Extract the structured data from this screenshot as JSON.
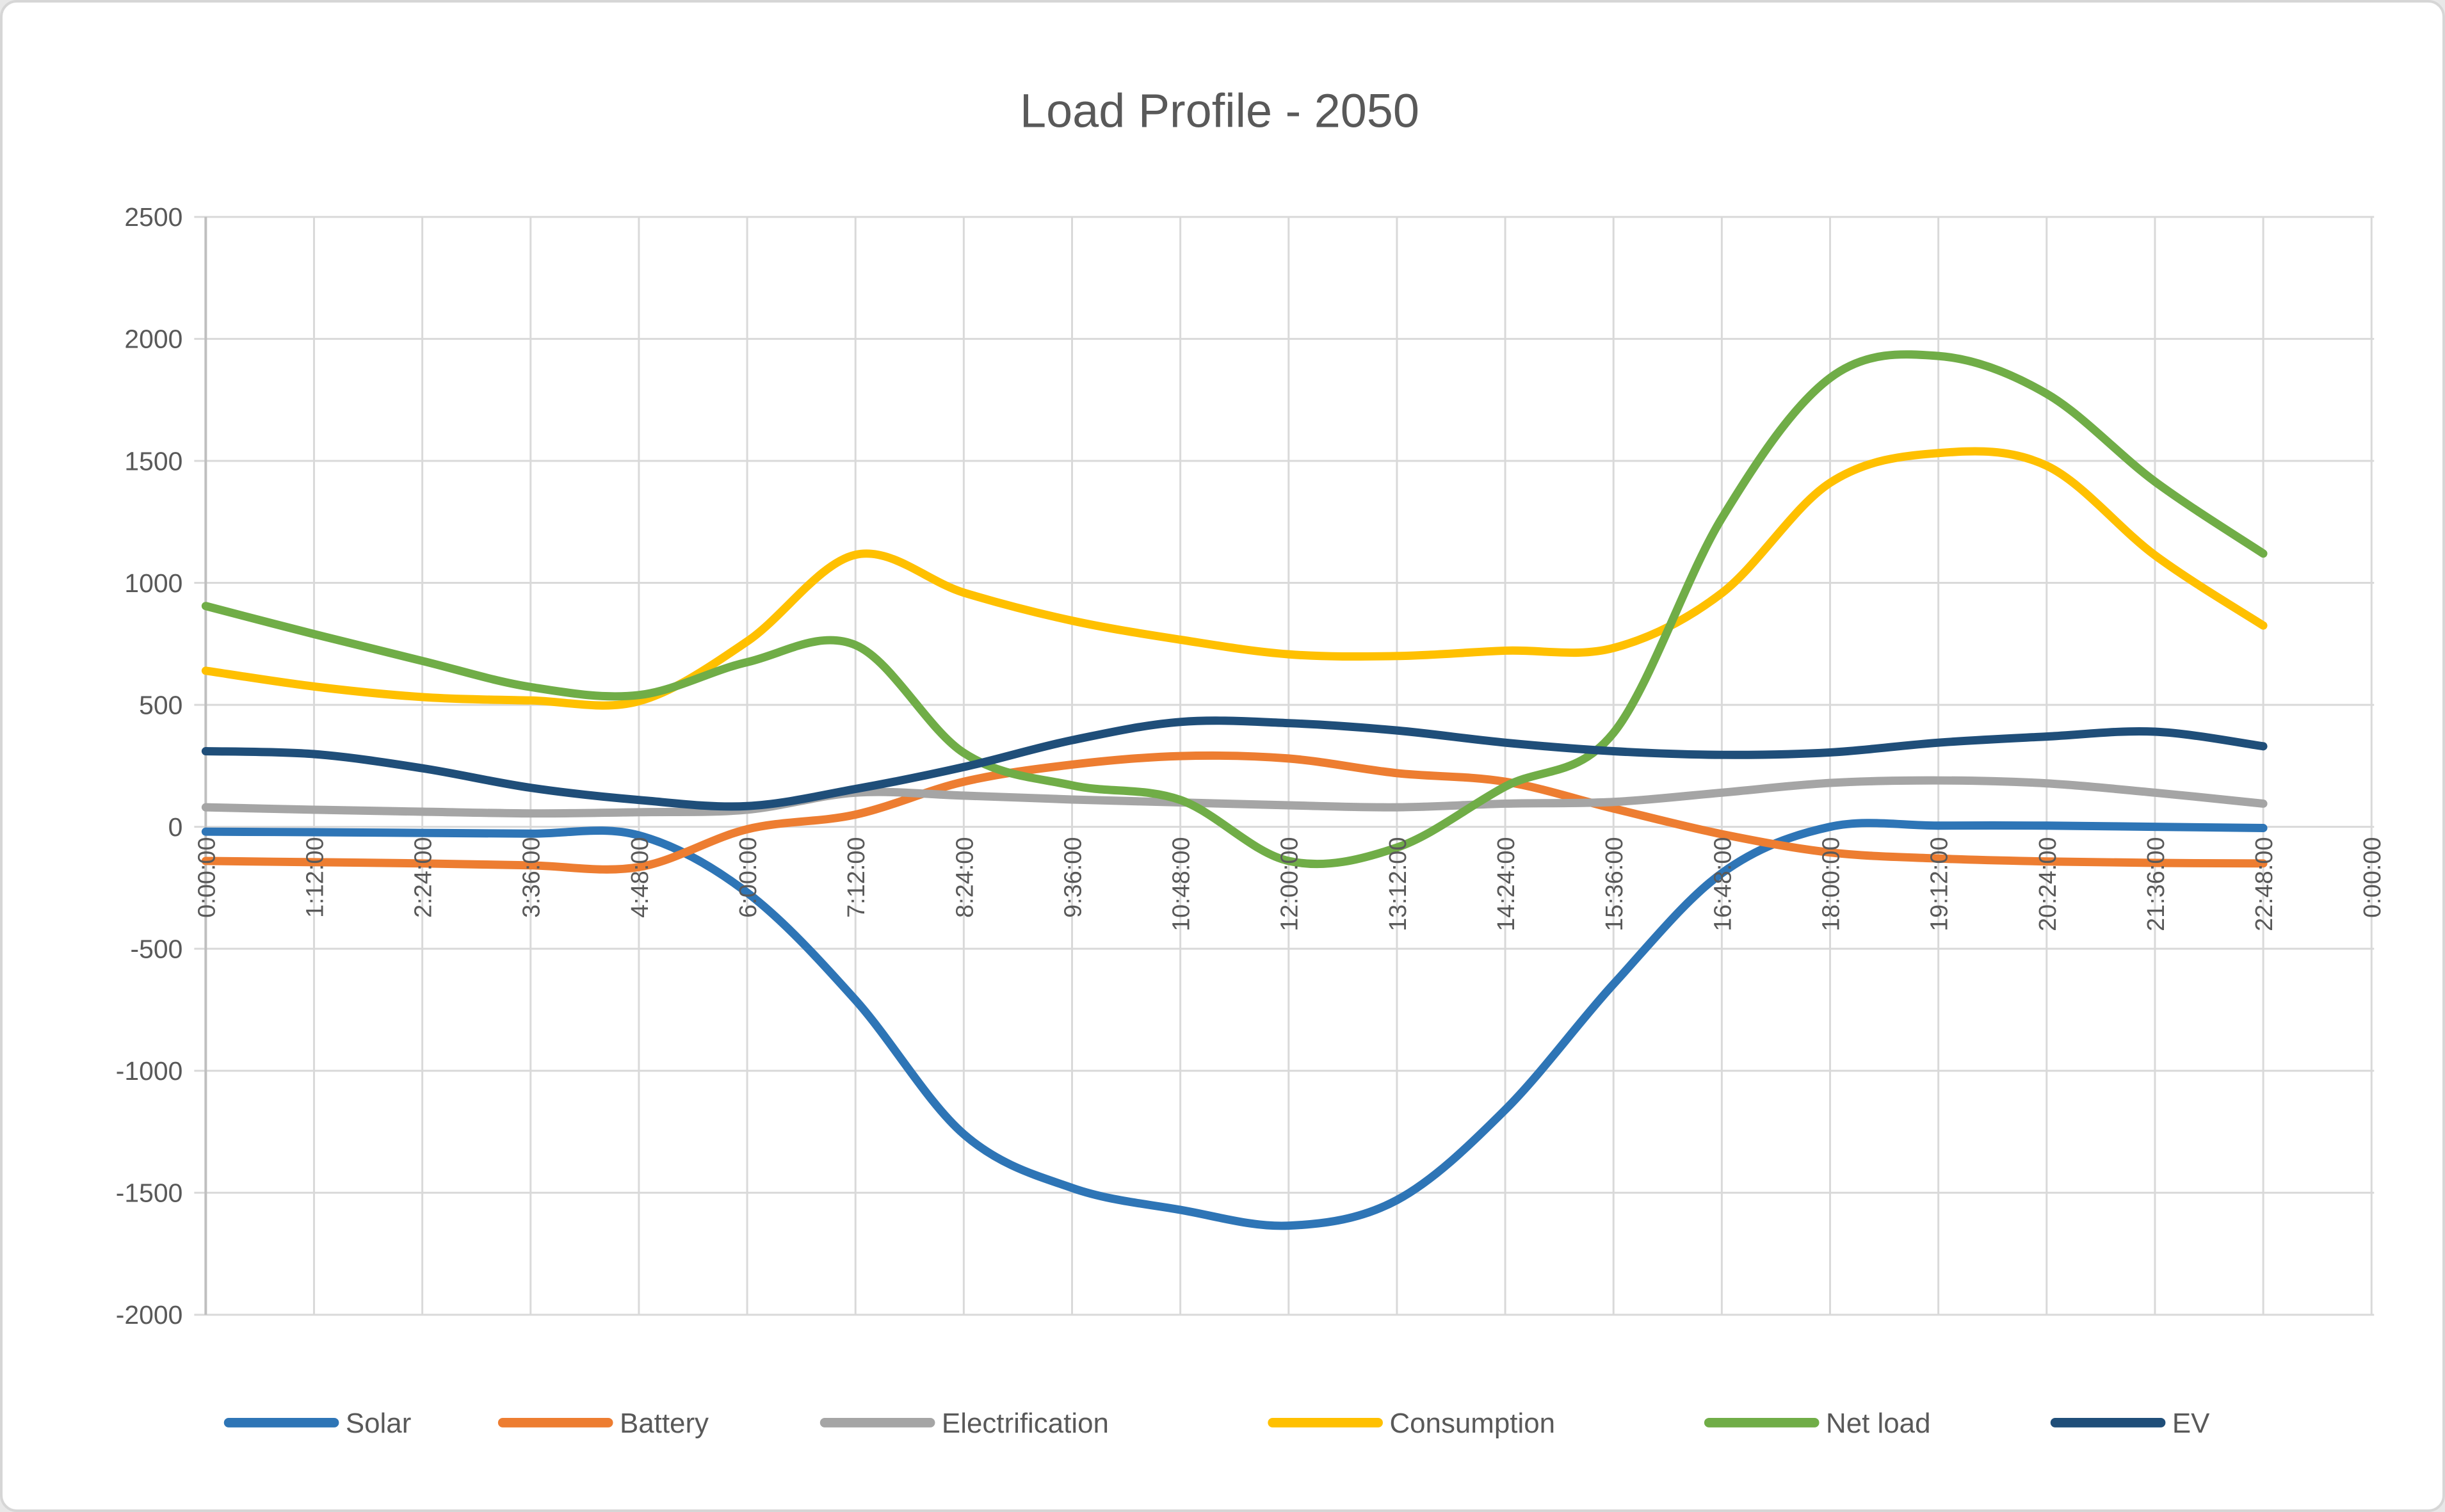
{
  "chart_data": {
    "type": "line",
    "title": "Load Profile - 2050",
    "xlabel": "",
    "ylabel": "",
    "ylim": [
      -2000,
      2500
    ],
    "y_ticks": [
      2500,
      2000,
      1500,
      1000,
      500,
      0,
      -500,
      -1000,
      -1500,
      -2000
    ],
    "x_tick_labels": [
      "0:00:00",
      "1:12:00",
      "2:24:00",
      "3:36:00",
      "4:48:00",
      "6:00:00",
      "7:12:00",
      "8:24:00",
      "9:36:00",
      "10:48:00",
      "12:00:00",
      "13:12:00",
      "14:24:00",
      "15:36:00",
      "16:48:00",
      "18:00:00",
      "19:12:00",
      "20:24:00",
      "21:36:00",
      "22:48:00",
      "0:00:00"
    ],
    "grid": true,
    "smooth": true,
    "legend_position": "bottom",
    "text_color": "#595959",
    "gridline_color": "#d9d9d9",
    "axis_line_color": "#bfbfbf",
    "series": [
      {
        "name": "Solar",
        "color": "#2E75B6",
        "values": [
          -20,
          -22,
          -25,
          -28,
          -35,
          -270,
          -710,
          -1260,
          -1480,
          -1570,
          -1635,
          -1530,
          -1160,
          -645,
          -190,
          0,
          5,
          5,
          0,
          -5
        ]
      },
      {
        "name": "Battery",
        "color": "#ED7D31",
        "values": [
          -140,
          -145,
          -150,
          -158,
          -165,
          -10,
          50,
          185,
          255,
          290,
          280,
          220,
          185,
          75,
          -30,
          -105,
          -130,
          -142,
          -148,
          -150
        ]
      },
      {
        "name": "Electrification",
        "color": "#A5A5A5",
        "values": [
          80,
          70,
          62,
          55,
          60,
          70,
          140,
          128,
          112,
          100,
          88,
          80,
          95,
          102,
          140,
          180,
          190,
          178,
          140,
          95
        ]
      },
      {
        "name": "Consumption",
        "color": "#FFC000",
        "values": [
          640,
          575,
          532,
          518,
          515,
          760,
          1115,
          960,
          845,
          767,
          707,
          700,
          722,
          733,
          958,
          1410,
          1532,
          1480,
          1113,
          825
        ]
      },
      {
        "name": "Net load",
        "color": "#70AD47",
        "values": [
          905,
          790,
          680,
          573,
          540,
          675,
          745,
          303,
          170,
          110,
          -140,
          -85,
          165,
          385,
          1265,
          1840,
          1930,
          1775,
          1415,
          1120
        ]
      },
      {
        "name": "EV",
        "color": "#1F4E79",
        "values": [
          310,
          298,
          240,
          160,
          110,
          85,
          155,
          245,
          355,
          430,
          425,
          395,
          345,
          310,
          295,
          305,
          345,
          370,
          390,
          330
        ]
      }
    ]
  }
}
